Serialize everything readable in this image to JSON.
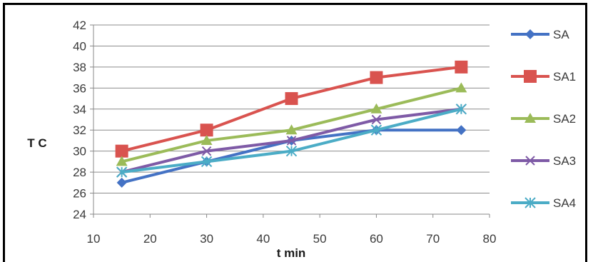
{
  "chart_data": {
    "type": "line",
    "title": "",
    "xlabel": "t min",
    "ylabel": "T C",
    "xlim": [
      10,
      80
    ],
    "ylim": [
      24,
      42
    ],
    "xticks": [
      10,
      20,
      30,
      40,
      50,
      60,
      70,
      80
    ],
    "yticks": [
      24,
      26,
      28,
      30,
      32,
      34,
      36,
      38,
      40,
      42
    ],
    "grid": "horizontal",
    "legend_position": "right",
    "x": [
      15,
      30,
      45,
      60,
      75
    ],
    "series": [
      {
        "name": "SA",
        "values": [
          27,
          29,
          31,
          32,
          32
        ],
        "color": "#4472C4",
        "marker": "diamond"
      },
      {
        "name": "SA1",
        "values": [
          30,
          32,
          35,
          37,
          38
        ],
        "color": "#D9534F",
        "marker": "square"
      },
      {
        "name": "SA2",
        "values": [
          29,
          31,
          32,
          34,
          36
        ],
        "color": "#9BBB59",
        "marker": "triangle"
      },
      {
        "name": "SA3",
        "values": [
          28,
          30,
          31,
          33,
          34
        ],
        "color": "#7E5AA6",
        "marker": "x"
      },
      {
        "name": "SA4",
        "values": [
          28,
          29,
          30,
          32,
          34
        ],
        "color": "#4BACC6",
        "marker": "star"
      }
    ]
  }
}
